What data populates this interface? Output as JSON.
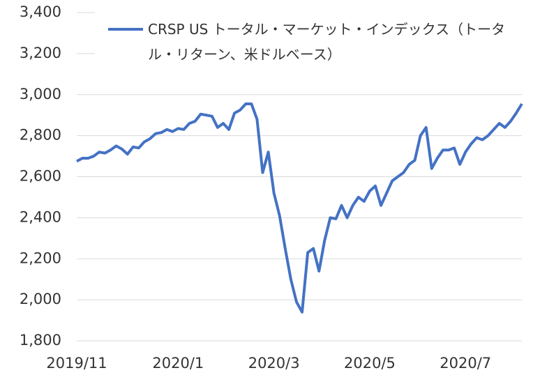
{
  "chart_data": {
    "type": "line",
    "categories": [
      "2019/11",
      null,
      null,
      null,
      null,
      null,
      null,
      null,
      null,
      null,
      null,
      null,
      null,
      null,
      null,
      null,
      null,
      null,
      "2020/1",
      null,
      null,
      null,
      null,
      null,
      null,
      null,
      null,
      null,
      null,
      null,
      null,
      null,
      null,
      null,
      null,
      "2020/3",
      null,
      null,
      null,
      null,
      null,
      null,
      null,
      null,
      null,
      null,
      null,
      null,
      null,
      null,
      null,
      null,
      "2020/5",
      null,
      null,
      null,
      null,
      null,
      null,
      null,
      null,
      null,
      null,
      null,
      null,
      null,
      null,
      null,
      null,
      "2020/7",
      null,
      null,
      null,
      null,
      null,
      null,
      null,
      null,
      null,
      null
    ],
    "series": [
      {
        "name": "CRSP US トータル・マーケット・インデックス（トータル・リターン、米ドルベース）",
        "color": "#4472c4",
        "values": [
          2675,
          2690,
          2690,
          2700,
          2720,
          2715,
          2730,
          2750,
          2735,
          2710,
          2745,
          2740,
          2770,
          2785,
          2810,
          2815,
          2830,
          2820,
          2835,
          2830,
          2860,
          2870,
          2905,
          2900,
          2895,
          2840,
          2860,
          2830,
          2910,
          2925,
          2955,
          2955,
          2880,
          2620,
          2720,
          2520,
          2410,
          2250,
          2100,
          1990,
          1940,
          2230,
          2250,
          2140,
          2290,
          2400,
          2395,
          2460,
          2400,
          2460,
          2500,
          2480,
          2530,
          2555,
          2460,
          2520,
          2580,
          2600,
          2620,
          2660,
          2680,
          2800,
          2840,
          2640,
          2690,
          2730,
          2730,
          2740,
          2660,
          2720,
          2760,
          2790,
          2780,
          2800,
          2830,
          2860,
          2840,
          2870,
          2910,
          2955
        ]
      }
    ],
    "ylim": [
      1800,
      3400
    ],
    "yticks": [
      {
        "value": 1800,
        "label": "1,800"
      },
      {
        "value": 2000,
        "label": "2,000"
      },
      {
        "value": 2200,
        "label": "2,200"
      },
      {
        "value": 2400,
        "label": "2,400"
      },
      {
        "value": 2600,
        "label": "2,600"
      },
      {
        "value": 2800,
        "label": "2,800"
      },
      {
        "value": 3000,
        "label": "3,000"
      },
      {
        "value": 3200,
        "label": "3,200"
      },
      {
        "value": 3400,
        "label": "3,400"
      }
    ],
    "grid": true,
    "legend": "top"
  }
}
